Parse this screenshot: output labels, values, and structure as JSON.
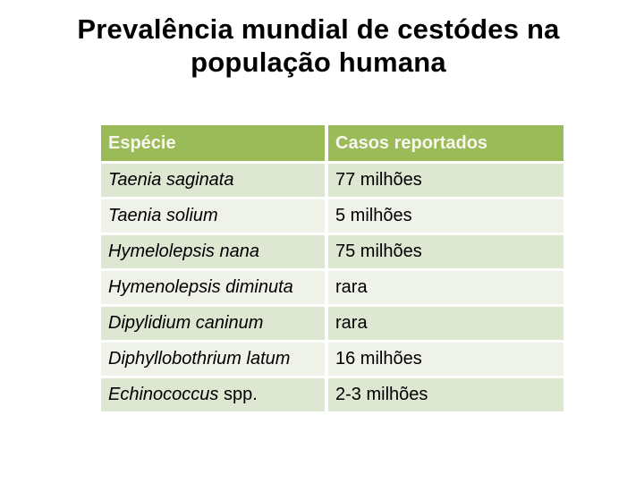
{
  "slide": {
    "title_line1": "Prevalência mundial de cestódes na",
    "title_line2": "população humana"
  },
  "table": {
    "headers": [
      "Espécie",
      "Casos reportados"
    ],
    "rows": [
      {
        "species": "Taenia saginata",
        "species_suffix": "",
        "cases": "77 milhões"
      },
      {
        "species": "Taenia solium",
        "species_suffix": "",
        "cases": "5 milhões"
      },
      {
        "species": "Hymelolepsis nana",
        "species_suffix": "",
        "cases": "75 milhões"
      },
      {
        "species": "Hymenolepsis diminuta",
        "species_suffix": "",
        "cases": "rara"
      },
      {
        "species": "Dipylidium caninum",
        "species_suffix": "",
        "cases": "rara"
      },
      {
        "species": "Diphyllobothrium latum",
        "species_suffix": "",
        "cases": "16 milhões"
      },
      {
        "species": "Echinococcus",
        "species_suffix": " spp.",
        "cases": "2-3 milhões"
      }
    ]
  },
  "colors": {
    "header_bg": "#9BBB59",
    "header_text": "#F7F7EF",
    "row_dark_bg": "#DDE7D2",
    "row_light_bg": "#EFF2E9",
    "separator": "#FFFFFF",
    "title_text": "#000000"
  }
}
